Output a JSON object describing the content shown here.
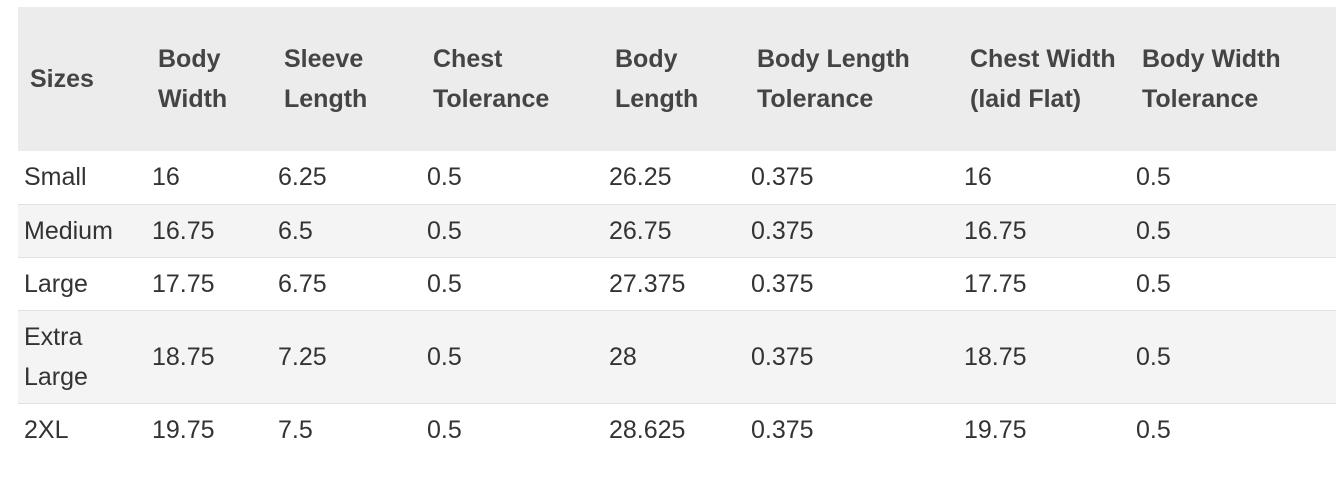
{
  "table": {
    "headers": [
      "Sizes",
      "Body Width",
      "Sleeve Length",
      "Chest Tolerance",
      "Body Length",
      "Body Length Tolerance",
      "Chest Width (laid Flat)",
      "Body Width Tolerance"
    ],
    "rows": [
      [
        "Small",
        "16",
        "6.25",
        "0.5",
        "26.25",
        "0.375",
        "16",
        "0.5"
      ],
      [
        "Medium",
        "16.75",
        "6.5",
        "0.5",
        "26.75",
        "0.375",
        "16.75",
        "0.5"
      ],
      [
        "Large",
        "17.75",
        "6.75",
        "0.5",
        "27.375",
        "0.375",
        "17.75",
        "0.5"
      ],
      [
        "Extra Large",
        "18.75",
        "7.25",
        "0.5",
        "28",
        "0.375",
        "18.75",
        "0.5"
      ],
      [
        "2XL",
        "19.75",
        "7.5",
        "0.5",
        "28.625",
        "0.375",
        "19.75",
        "0.5"
      ]
    ]
  }
}
